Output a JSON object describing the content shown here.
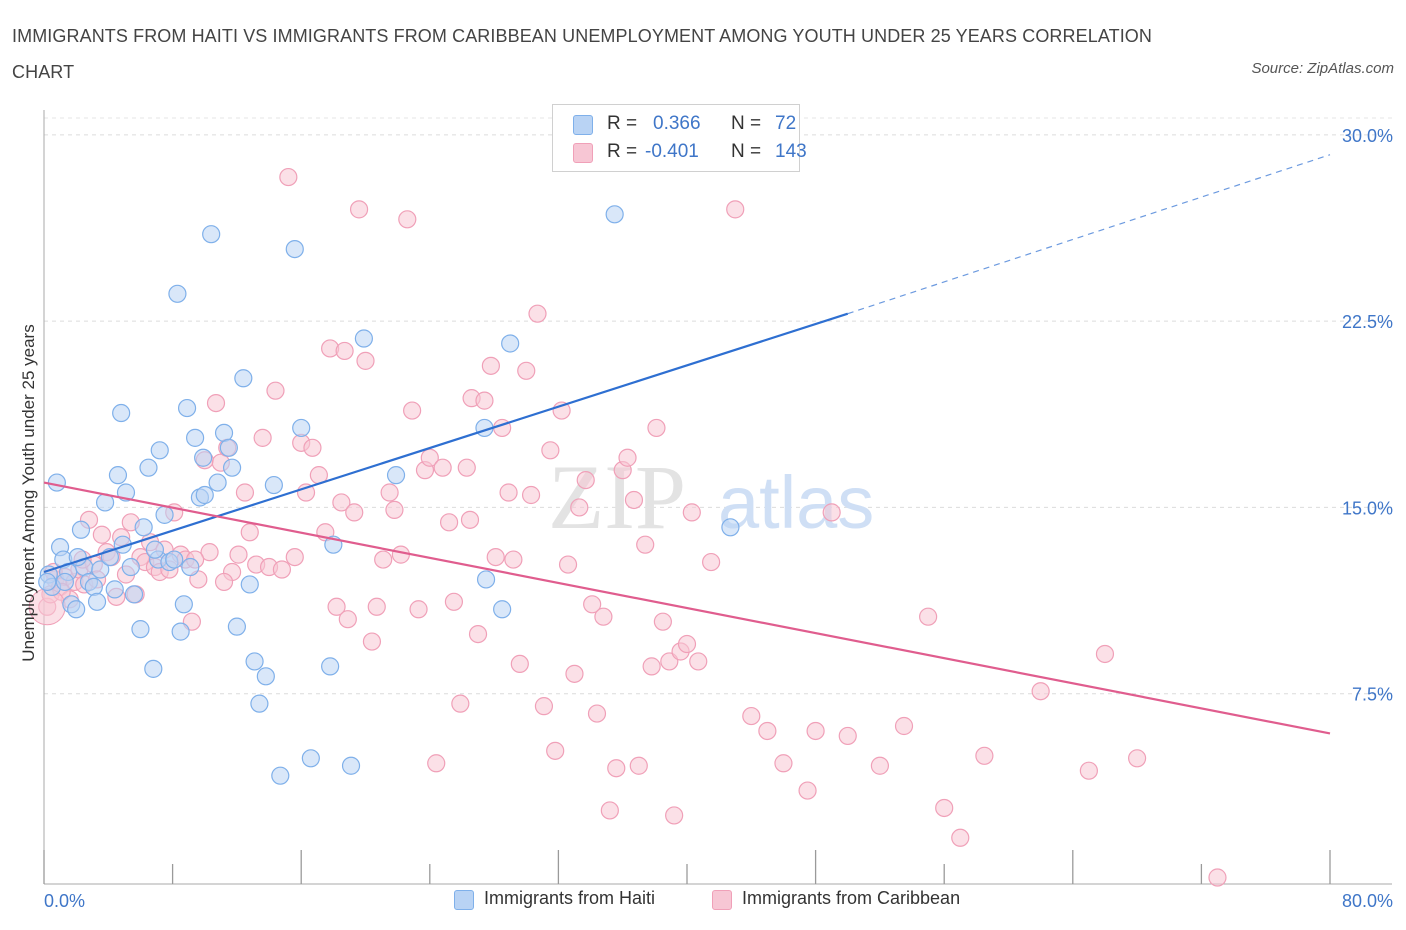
{
  "title": "IMMIGRANTS FROM HAITI VS IMMIGRANTS FROM CARIBBEAN UNEMPLOYMENT AMONG YOUTH UNDER 25 YEARS CORRELATION CHART",
  "source": "Source: ZipAtlas.com",
  "watermark": {
    "zip": "ZIP",
    "atlas": "atlas"
  },
  "legend_top": {
    "rows": [
      {
        "r_label": "R =",
        "r_value": "0.366",
        "n_label": "N =",
        "n_value": "72"
      },
      {
        "r_label": "R =",
        "r_value": "-0.401",
        "n_label": "N =",
        "n_value": "143"
      }
    ]
  },
  "chart_data": {
    "type": "scatter",
    "ylabel": "Unemployment Among Youth under 25 years",
    "xlim": [
      0,
      80
    ],
    "ylim": [
      0,
      31
    ],
    "x_tick_labels": {
      "min": "0.0%",
      "max": "80.0%"
    },
    "y_ticks": [
      {
        "value": 7.5,
        "label": "7.5%"
      },
      {
        "value": 15,
        "label": "15.0%"
      },
      {
        "value": 22.5,
        "label": "22.5%"
      },
      {
        "value": 30,
        "label": "30.0%"
      }
    ],
    "grid": "horizontal-dashed",
    "series": [
      {
        "name": "Immigrants from Haiti",
        "color": "#7fb0ea",
        "fill": "#b9d3f4",
        "line_color": "#2e6fd1",
        "trend": {
          "x0": 0,
          "y0": 12.4,
          "x1": 50,
          "y1": 22.8,
          "x_dash_end": 80,
          "y_dash_end": 29.2
        },
        "points": [
          [
            0.3,
            12.3
          ],
          [
            0.5,
            11.8
          ],
          [
            0.8,
            16.0
          ],
          [
            1.0,
            13.4
          ],
          [
            1.2,
            12.9
          ],
          [
            1.5,
            12.4
          ],
          [
            1.7,
            11.1
          ],
          [
            2.0,
            10.9
          ],
          [
            2.3,
            14.1
          ],
          [
            2.5,
            12.6
          ],
          [
            2.8,
            12.0
          ],
          [
            3.1,
            11.8
          ],
          [
            3.5,
            12.5
          ],
          [
            3.8,
            15.2
          ],
          [
            4.1,
            13.0
          ],
          [
            4.4,
            11.7
          ],
          [
            4.6,
            16.3
          ],
          [
            4.8,
            18.8
          ],
          [
            5.1,
            15.6
          ],
          [
            5.4,
            12.6
          ],
          [
            5.6,
            11.5
          ],
          [
            6.0,
            10.1
          ],
          [
            6.2,
            14.2
          ],
          [
            6.5,
            16.6
          ],
          [
            6.8,
            8.5
          ],
          [
            7.1,
            12.9
          ],
          [
            7.2,
            17.3
          ],
          [
            7.5,
            14.7
          ],
          [
            7.8,
            12.8
          ],
          [
            8.1,
            12.9
          ],
          [
            8.3,
            23.6
          ],
          [
            8.5,
            10.0
          ],
          [
            8.7,
            11.1
          ],
          [
            8.9,
            19.0
          ],
          [
            9.1,
            12.6
          ],
          [
            9.4,
            17.8
          ],
          [
            9.7,
            15.4
          ],
          [
            10.0,
            15.5
          ],
          [
            10.4,
            26.0
          ],
          [
            10.8,
            16.0
          ],
          [
            11.2,
            18.0
          ],
          [
            11.5,
            17.4
          ],
          [
            11.7,
            16.6
          ],
          [
            12.0,
            10.2
          ],
          [
            12.4,
            20.2
          ],
          [
            12.8,
            11.9
          ],
          [
            13.1,
            8.8
          ],
          [
            13.4,
            7.1
          ],
          [
            13.8,
            8.2
          ],
          [
            14.3,
            15.9
          ],
          [
            14.7,
            4.2
          ],
          [
            15.6,
            25.4
          ],
          [
            16.0,
            18.2
          ],
          [
            16.6,
            4.9
          ],
          [
            17.8,
            8.6
          ],
          [
            19.1,
            4.6
          ],
          [
            19.9,
            21.8
          ],
          [
            21.9,
            16.3
          ],
          [
            27.4,
            18.2
          ],
          [
            27.5,
            12.1
          ],
          [
            28.5,
            10.9
          ],
          [
            29.0,
            21.6
          ],
          [
            35.5,
            26.8
          ],
          [
            42.7,
            14.2
          ],
          [
            0.2,
            12.0
          ],
          [
            1.3,
            12.0
          ],
          [
            2.1,
            13.0
          ],
          [
            3.3,
            11.2
          ],
          [
            4.9,
            13.5
          ],
          [
            6.9,
            13.3
          ],
          [
            9.9,
            17.0
          ],
          [
            18.0,
            13.5
          ]
        ]
      },
      {
        "name": "Immigrants from Caribbean",
        "color": "#f0a0b8",
        "fill": "#f7c6d4",
        "line_color": "#e05d8e",
        "trend": {
          "x0": 0,
          "y0": 16.0,
          "x1": 80,
          "y1": 5.9
        },
        "points": [
          [
            0.2,
            11.0
          ],
          [
            0.4,
            11.5
          ],
          [
            0.7,
            12.1
          ],
          [
            1.0,
            11.8
          ],
          [
            1.3,
            12.2
          ],
          [
            1.6,
            11.3
          ],
          [
            1.9,
            12.0
          ],
          [
            2.2,
            12.5
          ],
          [
            2.5,
            11.9
          ],
          [
            2.8,
            14.5
          ],
          [
            3.1,
            12.7
          ],
          [
            3.3,
            12.1
          ],
          [
            3.6,
            13.9
          ],
          [
            3.9,
            13.2
          ],
          [
            4.2,
            13.0
          ],
          [
            4.5,
            11.4
          ],
          [
            4.8,
            13.8
          ],
          [
            5.1,
            12.3
          ],
          [
            5.4,
            14.4
          ],
          [
            5.7,
            11.5
          ],
          [
            6.0,
            13.0
          ],
          [
            6.3,
            12.8
          ],
          [
            6.6,
            13.6
          ],
          [
            6.9,
            12.6
          ],
          [
            7.2,
            12.4
          ],
          [
            7.5,
            13.3
          ],
          [
            7.8,
            12.5
          ],
          [
            8.1,
            14.8
          ],
          [
            8.5,
            13.1
          ],
          [
            8.8,
            12.9
          ],
          [
            9.2,
            10.4
          ],
          [
            9.6,
            12.1
          ],
          [
            10.0,
            16.9
          ],
          [
            10.3,
            13.2
          ],
          [
            10.7,
            19.2
          ],
          [
            11.0,
            16.8
          ],
          [
            11.4,
            17.4
          ],
          [
            11.7,
            12.4
          ],
          [
            12.1,
            13.1
          ],
          [
            12.5,
            15.6
          ],
          [
            12.8,
            14.0
          ],
          [
            13.2,
            12.7
          ],
          [
            13.6,
            17.8
          ],
          [
            14.0,
            12.6
          ],
          [
            14.4,
            19.7
          ],
          [
            14.8,
            12.5
          ],
          [
            15.2,
            28.3
          ],
          [
            15.6,
            13.0
          ],
          [
            16.0,
            17.6
          ],
          [
            16.3,
            15.6
          ],
          [
            16.7,
            17.4
          ],
          [
            17.1,
            16.3
          ],
          [
            17.5,
            14.0
          ],
          [
            17.8,
            21.4
          ],
          [
            18.2,
            11.0
          ],
          [
            18.5,
            15.2
          ],
          [
            18.9,
            10.5
          ],
          [
            19.3,
            14.8
          ],
          [
            19.6,
            27.0
          ],
          [
            20.0,
            20.9
          ],
          [
            20.4,
            9.6
          ],
          [
            20.7,
            11.0
          ],
          [
            21.1,
            12.9
          ],
          [
            21.5,
            15.6
          ],
          [
            21.8,
            14.9
          ],
          [
            22.2,
            13.1
          ],
          [
            22.6,
            26.6
          ],
          [
            22.9,
            18.9
          ],
          [
            23.3,
            10.9
          ],
          [
            23.7,
            16.5
          ],
          [
            24.0,
            17.0
          ],
          [
            24.4,
            4.7
          ],
          [
            24.8,
            16.6
          ],
          [
            25.2,
            14.4
          ],
          [
            25.5,
            11.2
          ],
          [
            25.9,
            7.1
          ],
          [
            26.3,
            16.6
          ],
          [
            26.6,
            19.4
          ],
          [
            27.0,
            9.9
          ],
          [
            27.4,
            19.3
          ],
          [
            27.8,
            20.7
          ],
          [
            28.1,
            13.0
          ],
          [
            28.5,
            18.2
          ],
          [
            28.9,
            15.6
          ],
          [
            29.2,
            12.9
          ],
          [
            29.6,
            8.7
          ],
          [
            30.0,
            20.5
          ],
          [
            30.3,
            15.5
          ],
          [
            30.7,
            22.8
          ],
          [
            31.1,
            7.0
          ],
          [
            31.5,
            17.3
          ],
          [
            31.8,
            5.2
          ],
          [
            32.2,
            18.9
          ],
          [
            32.6,
            12.7
          ],
          [
            33.0,
            8.3
          ],
          [
            33.3,
            15.0
          ],
          [
            33.7,
            16.1
          ],
          [
            34.1,
            11.1
          ],
          [
            34.4,
            6.7
          ],
          [
            34.8,
            10.6
          ],
          [
            35.2,
            2.8
          ],
          [
            35.6,
            4.5
          ],
          [
            36.0,
            16.5
          ],
          [
            36.3,
            17.0
          ],
          [
            36.7,
            15.3
          ],
          [
            37.0,
            4.6
          ],
          [
            37.4,
            13.5
          ],
          [
            37.8,
            8.6
          ],
          [
            38.1,
            18.2
          ],
          [
            38.5,
            10.4
          ],
          [
            38.9,
            8.8
          ],
          [
            39.2,
            2.6
          ],
          [
            39.6,
            9.2
          ],
          [
            40.0,
            9.5
          ],
          [
            40.3,
            14.8
          ],
          [
            40.7,
            8.8
          ],
          [
            41.5,
            12.8
          ],
          [
            43.0,
            27.0
          ],
          [
            44.0,
            6.6
          ],
          [
            45.0,
            6.0
          ],
          [
            46.0,
            4.7
          ],
          [
            47.5,
            3.6
          ],
          [
            48.0,
            6.0
          ],
          [
            49.0,
            14.8
          ],
          [
            50.0,
            5.8
          ],
          [
            52.0,
            4.6
          ],
          [
            53.5,
            6.2
          ],
          [
            55.0,
            10.6
          ],
          [
            56.0,
            2.9
          ],
          [
            57.0,
            1.7
          ],
          [
            58.5,
            5.0
          ],
          [
            62.0,
            7.6
          ],
          [
            65.0,
            4.4
          ],
          [
            66.0,
            9.1
          ],
          [
            68.0,
            4.9
          ],
          [
            73.0,
            0.1
          ],
          [
            0.6,
            12.4
          ],
          [
            1.1,
            11.6
          ],
          [
            2.4,
            12.9
          ],
          [
            9.4,
            12.9
          ],
          [
            11.2,
            12.0
          ],
          [
            18.7,
            21.3
          ],
          [
            26.5,
            14.5
          ]
        ]
      }
    ]
  }
}
